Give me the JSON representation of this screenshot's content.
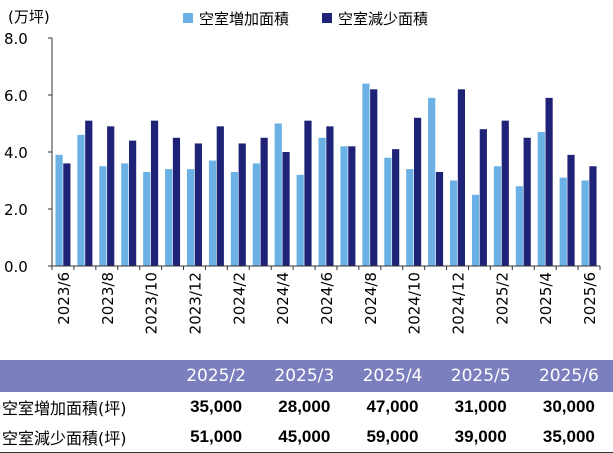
{
  "chart_data": {
    "type": "bar",
    "unit_label": "(万坪)",
    "ylim": [
      0,
      8
    ],
    "yticks": [
      "0.0",
      "2.0",
      "4.0",
      "6.0",
      "8.0"
    ],
    "categories": [
      "2023/6",
      "2023/7",
      "2023/8",
      "2023/9",
      "2023/10",
      "2023/11",
      "2023/12",
      "2024/1",
      "2024/2",
      "2024/3",
      "2024/4",
      "2024/5",
      "2024/6",
      "2024/7",
      "2024/8",
      "2024/9",
      "2024/10",
      "2024/11",
      "2024/12",
      "2025/1",
      "2025/2",
      "2025/3",
      "2025/4",
      "2025/5",
      "2025/6"
    ],
    "tick_labels": [
      "2023/6",
      "2023/8",
      "2023/10",
      "2023/12",
      "2024/2",
      "2024/4",
      "2024/6",
      "2024/8",
      "2024/10",
      "2024/12",
      "2025/2",
      "2025/4",
      "2025/6"
    ],
    "series": [
      {
        "name": "空室増加面積",
        "color": "#6cb1e6",
        "values": [
          3.9,
          4.6,
          3.5,
          3.6,
          3.3,
          3.4,
          3.4,
          3.7,
          3.3,
          3.6,
          5.0,
          3.2,
          4.5,
          4.2,
          6.4,
          3.8,
          3.4,
          5.9,
          3.0,
          2.5,
          3.5,
          2.8,
          4.7,
          3.1,
          3.0
        ]
      },
      {
        "name": "空室減少面積",
        "color": "#1f2377",
        "values": [
          3.6,
          5.1,
          4.9,
          4.4,
          5.1,
          4.5,
          4.3,
          4.9,
          4.3,
          4.5,
          4.0,
          5.1,
          4.9,
          4.2,
          6.2,
          4.1,
          5.2,
          3.3,
          6.2,
          4.8,
          5.1,
          4.5,
          5.9,
          3.9,
          3.5
        ]
      }
    ],
    "legend_position": "top",
    "grid": false
  },
  "table": {
    "header_color": "#7b7fbe",
    "months": [
      "2025/2",
      "2025/3",
      "2025/4",
      "2025/5",
      "2025/6"
    ],
    "rows": [
      {
        "label": "空室増加面積(坪)",
        "values": [
          "35,000",
          "28,000",
          "47,000",
          "31,000",
          "30,000"
        ]
      },
      {
        "label": "空室減少面積(坪)",
        "values": [
          "51,000",
          "45,000",
          "59,000",
          "39,000",
          "35,000"
        ]
      }
    ]
  }
}
